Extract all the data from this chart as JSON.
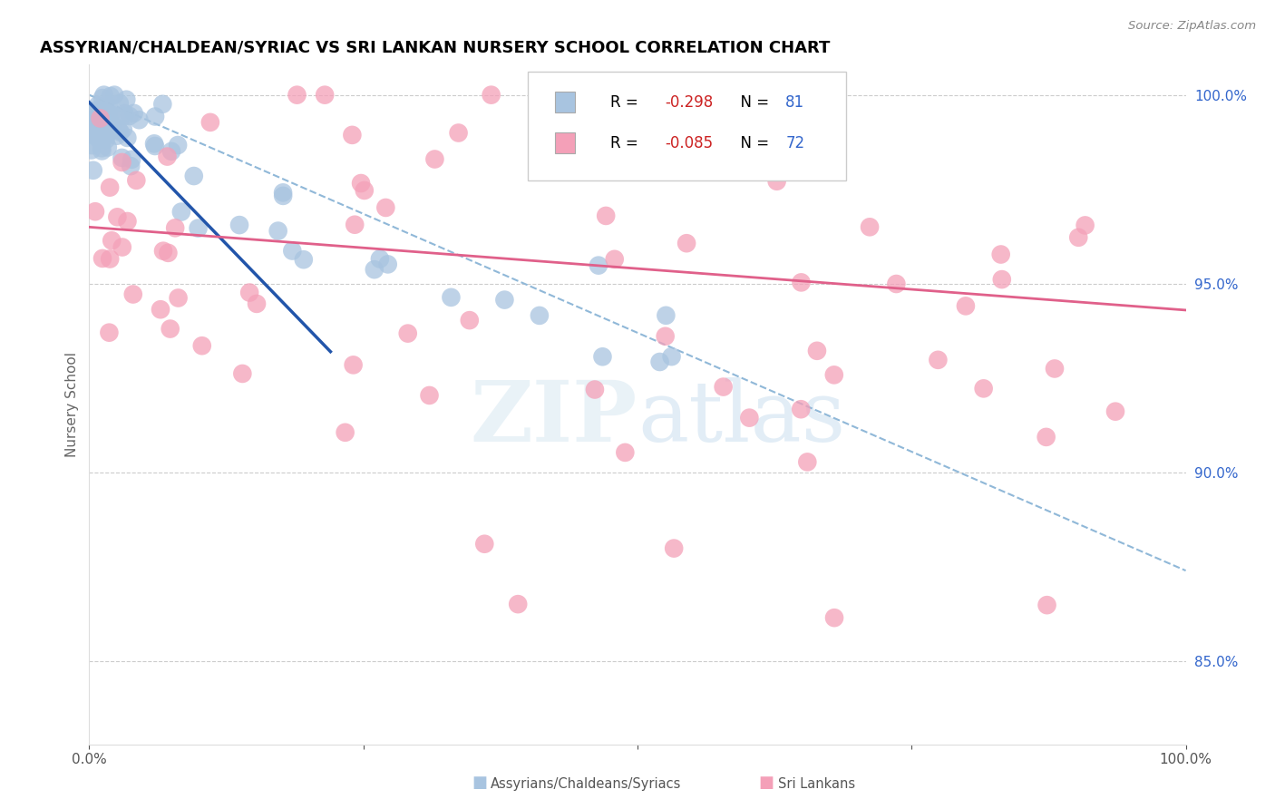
{
  "title": "ASSYRIAN/CHALDEAN/SYRIAC VS SRI LANKAN NURSERY SCHOOL CORRELATION CHART",
  "source": "Source: ZipAtlas.com",
  "ylabel": "Nursery School",
  "xlim": [
    0.0,
    1.0
  ],
  "ylim": [
    0.828,
    1.008
  ],
  "blue_color": "#a8c4e0",
  "pink_color": "#f4a0b8",
  "blue_line_color": "#2255aa",
  "pink_line_color": "#e0608a",
  "dashed_line_color": "#90b8d8",
  "legend_blue_r": "-0.298",
  "legend_blue_n": "81",
  "legend_pink_r": "-0.085",
  "legend_pink_n": "72",
  "blue_r_color": "#cc2222",
  "blue_n_color": "#3366cc",
  "pink_r_color": "#cc2222",
  "pink_n_color": "#3366cc",
  "ytick_color": "#3366cc",
  "xtick_color": "#555555"
}
